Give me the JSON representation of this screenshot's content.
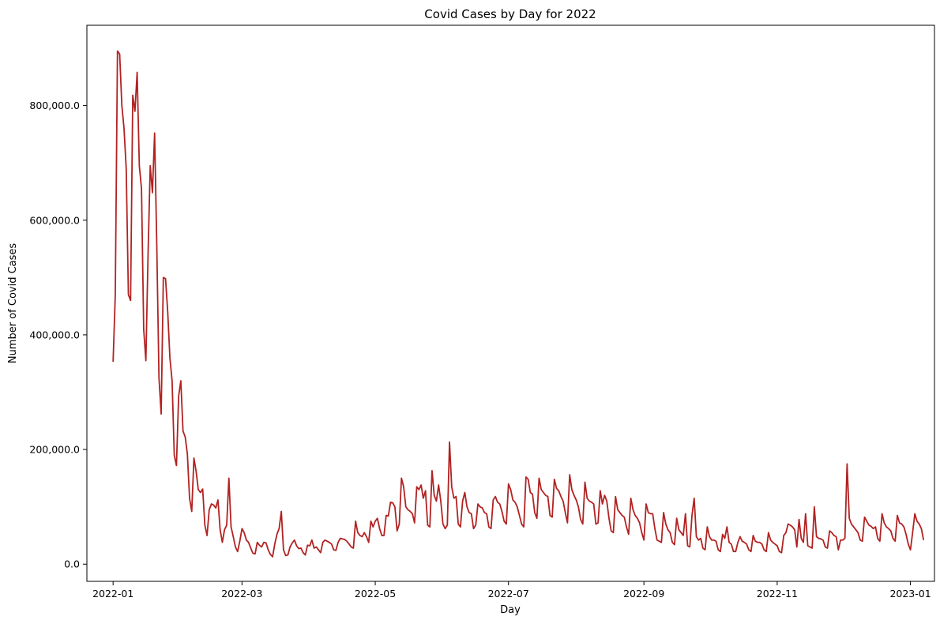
{
  "chart_data": {
    "type": "line",
    "title": "Covid Cases by Day for 2022",
    "xlabel": "Day",
    "ylabel": "Number of Covid Cases",
    "line_color": "#b22222",
    "xlim": [
      "2021-12-20",
      "2023-01-12"
    ],
    "ylim": [
      -30000,
      940000
    ],
    "x_ticks": [
      {
        "date": "2022-01-01",
        "label": "2022-01"
      },
      {
        "date": "2022-03-01",
        "label": "2022-03"
      },
      {
        "date": "2022-05-01",
        "label": "2022-05"
      },
      {
        "date": "2022-07-01",
        "label": "2022-07"
      },
      {
        "date": "2022-09-01",
        "label": "2022-09"
      },
      {
        "date": "2022-11-01",
        "label": "2022-11"
      },
      {
        "date": "2023-01-01",
        "label": "2023-01"
      }
    ],
    "y_ticks": [
      {
        "value": 0,
        "label": "0.0"
      },
      {
        "value": 200000,
        "label": "200,000.0"
      },
      {
        "value": 400000,
        "label": "400,000.0"
      },
      {
        "value": 600000,
        "label": "600,000.0"
      },
      {
        "value": 800000,
        "label": "800,000.0"
      }
    ],
    "series": [
      {
        "name": "Covid cases",
        "start_date": "2022-01-01",
        "values": [
          353000,
          470000,
          895000,
          890000,
          800000,
          760000,
          690000,
          470000,
          460000,
          818000,
          790000,
          858000,
          695000,
          655000,
          410000,
          355000,
          540000,
          695000,
          648000,
          752000,
          555000,
          325000,
          262000,
          500000,
          498000,
          440000,
          360000,
          320000,
          190000,
          172000,
          293000,
          320000,
          232000,
          222000,
          192000,
          115000,
          92000,
          185000,
          162000,
          130000,
          125000,
          131000,
          68000,
          50000,
          95000,
          105000,
          103000,
          98000,
          112000,
          60000,
          38000,
          60000,
          68000,
          150000,
          65000,
          48000,
          30000,
          22000,
          40000,
          62000,
          55000,
          42000,
          38000,
          28000,
          19000,
          18000,
          38000,
          33000,
          30000,
          38000,
          37000,
          25000,
          17000,
          13000,
          35000,
          52000,
          62000,
          92000,
          25000,
          15000,
          16000,
          30000,
          37000,
          42000,
          32000,
          27000,
          28000,
          20000,
          16000,
          33000,
          32000,
          42000,
          28000,
          30000,
          25000,
          20000,
          38000,
          42000,
          40000,
          38000,
          35000,
          25000,
          24000,
          38000,
          45000,
          44000,
          43000,
          40000,
          35000,
          30000,
          28000,
          75000,
          55000,
          50000,
          48000,
          55000,
          48000,
          38000,
          75000,
          65000,
          75000,
          80000,
          62000,
          50000,
          50000,
          85000,
          84000,
          108000,
          107000,
          100000,
          58000,
          70000,
          150000,
          135000,
          100000,
          95000,
          92000,
          88000,
          72000,
          135000,
          130000,
          138000,
          115000,
          128000,
          68000,
          65000,
          163000,
          120000,
          110000,
          138000,
          110000,
          70000,
          62000,
          68000,
          213000,
          135000,
          115000,
          118000,
          70000,
          65000,
          110000,
          125000,
          100000,
          90000,
          88000,
          62000,
          68000,
          105000,
          100000,
          98000,
          90000,
          88000,
          65000,
          62000,
          112000,
          118000,
          108000,
          105000,
          92000,
          75000,
          70000,
          140000,
          130000,
          112000,
          108000,
          100000,
          85000,
          70000,
          65000,
          152000,
          148000,
          125000,
          122000,
          90000,
          80000,
          150000,
          130000,
          125000,
          120000,
          118000,
          85000,
          82000,
          148000,
          132000,
          128000,
          118000,
          110000,
          90000,
          72000,
          156000,
          130000,
          120000,
          112000,
          100000,
          78000,
          70000,
          143000,
          115000,
          110000,
          108000,
          105000,
          70000,
          72000,
          128000,
          105000,
          120000,
          110000,
          80000,
          58000,
          55000,
          118000,
          95000,
          90000,
          85000,
          82000,
          65000,
          52000,
          115000,
          95000,
          85000,
          80000,
          72000,
          55000,
          42000,
          105000,
          90000,
          88000,
          88000,
          62000,
          42000,
          40000,
          38000,
          90000,
          70000,
          60000,
          55000,
          38000,
          34000,
          80000,
          60000,
          55000,
          50000,
          88000,
          32000,
          30000,
          85000,
          115000,
          48000,
          42000,
          45000,
          28000,
          25000,
          65000,
          48000,
          42000,
          42000,
          40000,
          25000,
          22000,
          52000,
          45000,
          65000,
          38000,
          35000,
          22000,
          22000,
          38000,
          48000,
          40000,
          38000,
          35000,
          25000,
          22000,
          50000,
          40000,
          38000,
          38000,
          35000,
          25000,
          22000,
          55000,
          42000,
          38000,
          35000,
          32000,
          22000,
          20000,
          50000,
          55000,
          70000,
          68000,
          65000,
          60000,
          30000,
          78000,
          45000,
          38000,
          88000,
          32000,
          30000,
          28000,
          100000,
          48000,
          45000,
          44000,
          42000,
          30000,
          28000,
          58000,
          55000,
          50000,
          48000,
          25000,
          42000,
          42000,
          45000,
          175000,
          80000,
          70000,
          65000,
          60000,
          55000,
          42000,
          40000,
          82000,
          75000,
          68000,
          66000,
          62000,
          65000,
          45000,
          40000,
          88000,
          72000,
          65000,
          62000,
          58000,
          45000,
          40000,
          85000,
          72000,
          70000,
          65000,
          52000,
          35000,
          25000,
          55000,
          88000,
          75000,
          70000,
          62000,
          42000
        ]
      }
    ]
  }
}
